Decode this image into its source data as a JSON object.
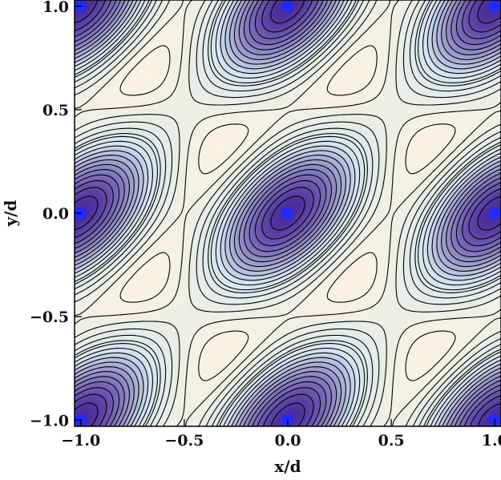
{
  "chart_data": {
    "type": "heatmap",
    "title": "",
    "xlabel": "x/d",
    "ylabel": "y/d",
    "xlim": [
      -1.03,
      1.03
    ],
    "ylim": [
      -1.03,
      1.03
    ],
    "x_ticks": [
      -1.0,
      -0.5,
      0.0,
      0.5,
      1.0
    ],
    "x_tick_labels": [
      "−1.0",
      "−0.5",
      "0.0",
      "0.5",
      "1.0"
    ],
    "y_ticks": [
      -1.0,
      -0.5,
      0.0,
      0.5,
      1.0
    ],
    "y_tick_labels": [
      "−1.0",
      "−0.5",
      "0.0",
      "0.5",
      "1.0"
    ],
    "points": [
      {
        "x": -1.0,
        "y": 1.0
      },
      {
        "x": 0.0,
        "y": 1.0
      },
      {
        "x": 1.0,
        "y": 1.0
      },
      {
        "x": -1.0,
        "y": 0.0
      },
      {
        "x": 0.0,
        "y": 0.0
      },
      {
        "x": 1.0,
        "y": 0.0
      },
      {
        "x": -1.0,
        "y": -1.0
      },
      {
        "x": 0.0,
        "y": -1.0
      },
      {
        "x": 1.0,
        "y": -1.0
      }
    ],
    "maxima": [
      {
        "x": -0.5,
        "y": 0.5
      },
      {
        "x": 0.5,
        "y": 0.5
      },
      {
        "x": -0.5,
        "y": -0.5
      },
      {
        "x": 0.5,
        "y": -0.5
      }
    ],
    "contours": "solid lines with a dashed zero contour",
    "grid": false,
    "legend": "none",
    "colors": {
      "low": "#4a2a9a",
      "mid": "#d4e6f0",
      "high": "#fbf3e2",
      "points": "#1f2bff",
      "contour_line": "#000000"
    }
  }
}
